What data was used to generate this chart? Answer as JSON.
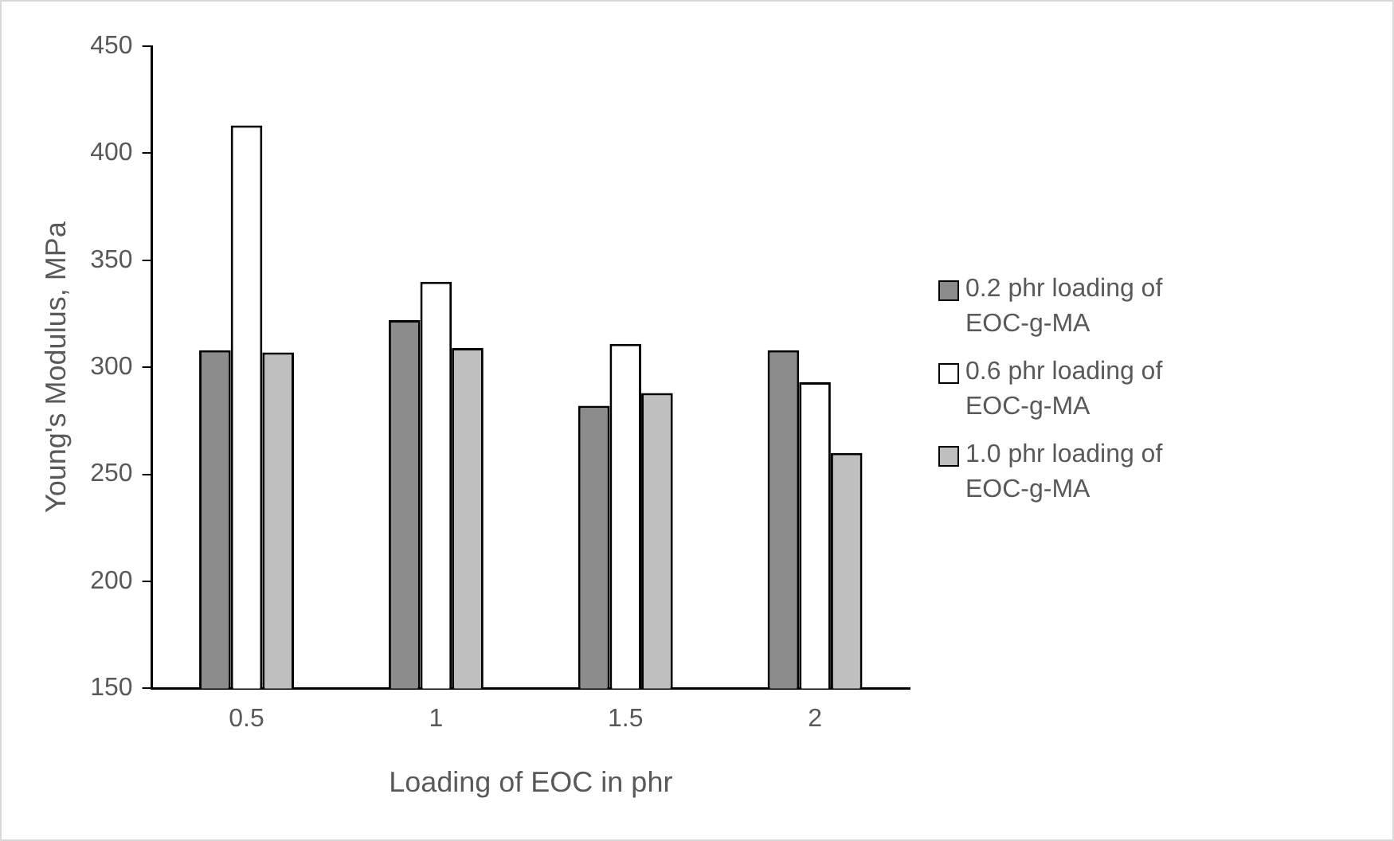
{
  "chart_data": {
    "type": "bar",
    "xlabel": "Loading of EOC in phr",
    "ylabel": "Young's Modulus, MPa",
    "categories": [
      "0.5",
      "1",
      "1.5",
      "2"
    ],
    "series": [
      {
        "name": "0.2 phr loading of EOC-g-MA",
        "color": "#8c8c8c",
        "values": [
          308,
          322,
          282,
          308
        ]
      },
      {
        "name": "0.6 phr loading of EOC-g-MA",
        "color": "#ffffff",
        "values": [
          413,
          340,
          311,
          293
        ]
      },
      {
        "name": "1.0 phr loading of EOC-g-MA",
        "color": "#bfbfbf",
        "values": [
          307,
          309,
          288,
          260
        ]
      }
    ],
    "ylim": [
      150,
      450
    ],
    "yticks": [
      150,
      200,
      250,
      300,
      350,
      400,
      450
    ],
    "grid": false,
    "legend": "right"
  }
}
